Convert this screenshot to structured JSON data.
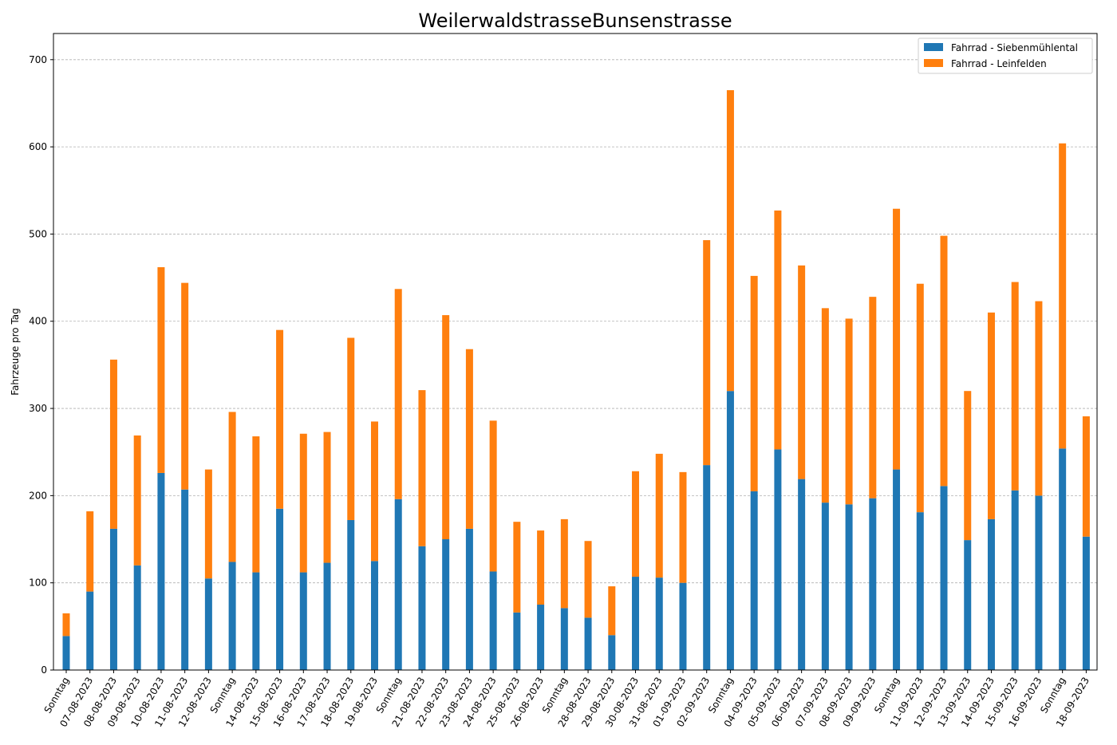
{
  "chart_data": {
    "type": "bar",
    "stacked": true,
    "title": "WeilerwaldstrasseBunsenstrasse",
    "xlabel": "",
    "ylabel": "Fahrzeuge pro Tag",
    "ylim": [
      0,
      730
    ],
    "yticks": [
      0,
      100,
      200,
      300,
      400,
      500,
      600,
      700
    ],
    "grid": "y",
    "legend_position": "top-right",
    "categories": [
      "Sonntag",
      "07-08-2023",
      "08-08-2023",
      "09-08-2023",
      "10-08-2023",
      "11-08-2023",
      "12-08-2023",
      "Sonntag",
      "14-08-2023",
      "15-08-2023",
      "16-08-2023",
      "17-08-2023",
      "18-08-2023",
      "19-08-2023",
      "Sonntag",
      "21-08-2023",
      "22-08-2023",
      "23-08-2023",
      "24-08-2023",
      "25-08-2023",
      "26-08-2023",
      "Sonntag",
      "28-08-2023",
      "29-08-2023",
      "30-08-2023",
      "31-08-2023",
      "01-09-2023",
      "02-09-2023",
      "Sonntag",
      "04-09-2023",
      "05-09-2023",
      "06-09-2023",
      "07-09-2023",
      "08-09-2023",
      "09-09-2023",
      "Sonntag",
      "11-09-2023",
      "12-09-2023",
      "13-09-2023",
      "14-09-2023",
      "15-09-2023",
      "16-09-2023",
      "Sonntag",
      "18-09-2023"
    ],
    "series": [
      {
        "name": "Fahrrad - Siebenmühlental",
        "color": "#1f77b4",
        "values": [
          39,
          90,
          162,
          120,
          226,
          207,
          105,
          124,
          112,
          185,
          112,
          123,
          172,
          125,
          196,
          142,
          150,
          162,
          113,
          66,
          75,
          71,
          60,
          40,
          107,
          106,
          100,
          235,
          320,
          205,
          253,
          219,
          192,
          190,
          197,
          230,
          181,
          211,
          149,
          173,
          206,
          200,
          254,
          153
        ]
      },
      {
        "name": "Fahrrad - Leinfelden",
        "color": "#ff7f0e",
        "values": [
          26,
          92,
          194,
          149,
          236,
          237,
          125,
          172,
          156,
          205,
          159,
          150,
          209,
          160,
          241,
          179,
          257,
          206,
          173,
          104,
          85,
          102,
          88,
          56,
          121,
          142,
          127,
          258,
          345,
          247,
          274,
          245,
          223,
          213,
          231,
          299,
          262,
          287,
          171,
          237,
          239,
          223,
          350,
          138
        ]
      }
    ]
  }
}
